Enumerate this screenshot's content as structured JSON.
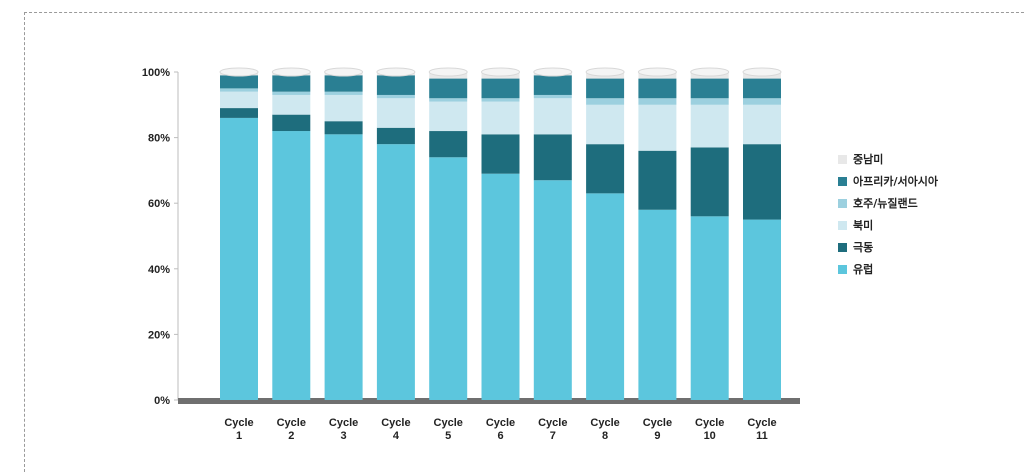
{
  "chart_data": {
    "type": "bar",
    "stacked": true,
    "percent": true,
    "categories": [
      [
        "Cycle",
        "1"
      ],
      [
        "Cycle",
        "2"
      ],
      [
        "Cycle",
        "3"
      ],
      [
        "Cycle",
        "4"
      ],
      [
        "Cycle",
        "5"
      ],
      [
        "Cycle",
        "6"
      ],
      [
        "Cycle",
        "7"
      ],
      [
        "Cycle",
        "8"
      ],
      [
        "Cycle",
        "9"
      ],
      [
        "Cycle",
        "10"
      ],
      [
        "Cycle",
        "11"
      ]
    ],
    "ylim": [
      0,
      100
    ],
    "yticks": [
      "0%",
      "20%",
      "40%",
      "60%",
      "80%",
      "100%"
    ],
    "series": [
      {
        "name": "유럽",
        "color": "#5cc6dd",
        "values": [
          86,
          82,
          81,
          78,
          74,
          69,
          67,
          63,
          58,
          56,
          55
        ]
      },
      {
        "name": "극동",
        "color": "#1e6d7d",
        "values": [
          3,
          5,
          4,
          5,
          8,
          12,
          14,
          15,
          18,
          21,
          23
        ]
      },
      {
        "name": "북미",
        "color": "#cfe8f0",
        "values": [
          5,
          6,
          8,
          9,
          9,
          10,
          11,
          12,
          14,
          13,
          12
        ]
      },
      {
        "name": "호주/뉴질랜드",
        "color": "#9cd0df",
        "values": [
          1,
          1,
          1,
          1,
          1,
          1,
          1,
          2,
          2,
          2,
          2
        ]
      },
      {
        "name": "아프리카/서아시아",
        "color": "#2a7f93",
        "values": [
          4,
          5,
          5,
          6,
          6,
          6,
          6,
          6,
          6,
          6,
          6
        ]
      },
      {
        "name": "중남미",
        "color": "#e8e8e8",
        "values": [
          1,
          1,
          1,
          1,
          2,
          2,
          1,
          2,
          2,
          2,
          2
        ]
      }
    ],
    "legend_order": [
      "중남미",
      "아프리카/서아시아",
      "호주/뉴질랜드",
      "북미",
      "극동",
      "유럽"
    ],
    "legend_position": "right",
    "grid": false
  }
}
